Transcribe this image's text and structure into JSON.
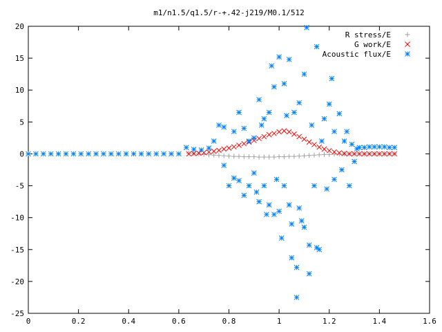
{
  "chart_data": {
    "type": "scatter",
    "title": "m1/n1.5/q1.5/r-+.42-j219/M0.1/512",
    "xlabel": "",
    "ylabel": "",
    "xlim": [
      0,
      1.6
    ],
    "ylim": [
      -25,
      20
    ],
    "x_ticks": [
      0,
      0.2,
      0.4,
      0.6,
      0.8,
      1,
      1.2,
      1.4,
      1.6
    ],
    "x_tick_labels": [
      "0",
      "0.2",
      "0.4",
      "0.6",
      "0.8",
      "1",
      "1.2",
      "1.4",
      "1.6"
    ],
    "y_ticks": [
      -25,
      -20,
      -15,
      -10,
      -5,
      0,
      5,
      10,
      15,
      20
    ],
    "y_tick_labels": [
      "-25",
      "-20",
      "-15",
      "-10",
      "-5",
      "0",
      "5",
      "10",
      "15",
      "20"
    ],
    "grid": false,
    "legend_position": "top-right",
    "series": [
      {
        "name": "R stress/E",
        "marker": "plus",
        "color": "#a0a0a0",
        "points": [
          [
            0.64,
            0.1
          ],
          [
            0.66,
            0.05
          ],
          [
            0.68,
            0.0
          ],
          [
            0.7,
            -0.1
          ],
          [
            0.72,
            -0.15
          ],
          [
            0.74,
            -0.2
          ],
          [
            0.76,
            -0.25
          ],
          [
            0.78,
            -0.3
          ],
          [
            0.8,
            -0.35
          ],
          [
            0.82,
            -0.4
          ],
          [
            0.84,
            -0.4
          ],
          [
            0.86,
            -0.45
          ],
          [
            0.88,
            -0.45
          ],
          [
            0.9,
            -0.45
          ],
          [
            0.92,
            -0.5
          ],
          [
            0.94,
            -0.5
          ],
          [
            0.96,
            -0.5
          ],
          [
            0.98,
            -0.5
          ],
          [
            1.0,
            -0.45
          ],
          [
            1.02,
            -0.45
          ],
          [
            1.04,
            -0.4
          ],
          [
            1.06,
            -0.4
          ],
          [
            1.08,
            -0.35
          ],
          [
            1.1,
            -0.3
          ],
          [
            1.12,
            -0.25
          ],
          [
            1.14,
            -0.2
          ],
          [
            1.16,
            -0.15
          ],
          [
            1.18,
            -0.1
          ],
          [
            1.2,
            -0.1
          ],
          [
            1.22,
            -0.05
          ],
          [
            1.24,
            -0.05
          ],
          [
            1.26,
            0.0
          ],
          [
            1.28,
            0.0
          ],
          [
            1.3,
            0.0
          ],
          [
            1.32,
            0.0
          ],
          [
            1.34,
            0.0
          ],
          [
            1.36,
            0.0
          ],
          [
            1.38,
            0.0
          ],
          [
            1.4,
            0.0
          ],
          [
            1.42,
            0.0
          ],
          [
            1.44,
            0.0
          ],
          [
            1.46,
            0.0
          ]
        ]
      },
      {
        "name": "G work/E",
        "marker": "cross",
        "color": "#ff0000",
        "points": [
          [
            0.64,
            0.0
          ],
          [
            0.66,
            0.05
          ],
          [
            0.68,
            0.1
          ],
          [
            0.7,
            0.2
          ],
          [
            0.72,
            0.3
          ],
          [
            0.74,
            0.4
          ],
          [
            0.76,
            0.55
          ],
          [
            0.78,
            0.75
          ],
          [
            0.8,
            0.9
          ],
          [
            0.82,
            1.1
          ],
          [
            0.84,
            1.35
          ],
          [
            0.86,
            1.6
          ],
          [
            0.88,
            1.85
          ],
          [
            0.9,
            2.1
          ],
          [
            0.92,
            2.4
          ],
          [
            0.94,
            2.7
          ],
          [
            0.96,
            3.0
          ],
          [
            0.98,
            3.2
          ],
          [
            1.0,
            3.45
          ],
          [
            1.02,
            3.6
          ],
          [
            1.04,
            3.45
          ],
          [
            1.06,
            3.1
          ],
          [
            1.08,
            2.7
          ],
          [
            1.1,
            2.3
          ],
          [
            1.12,
            1.85
          ],
          [
            1.14,
            1.45
          ],
          [
            1.16,
            1.05
          ],
          [
            1.18,
            0.75
          ],
          [
            1.2,
            0.5
          ],
          [
            1.22,
            0.3
          ],
          [
            1.24,
            0.15
          ],
          [
            1.26,
            0.05
          ],
          [
            1.28,
            0.0
          ],
          [
            1.3,
            0.0
          ],
          [
            1.32,
            0.0
          ],
          [
            1.34,
            0.0
          ],
          [
            1.36,
            0.0
          ],
          [
            1.38,
            0.0
          ],
          [
            1.4,
            0.0
          ],
          [
            1.42,
            0.0
          ],
          [
            1.44,
            0.0
          ],
          [
            1.46,
            0.0
          ]
        ]
      },
      {
        "name": "Acoustic flux/E",
        "marker": "star",
        "color": "#0080ff",
        "points": [
          [
            0.0,
            0.0
          ],
          [
            0.03,
            0.0
          ],
          [
            0.06,
            0.0
          ],
          [
            0.09,
            0.0
          ],
          [
            0.12,
            0.0
          ],
          [
            0.15,
            0.0
          ],
          [
            0.18,
            0.0
          ],
          [
            0.21,
            0.0
          ],
          [
            0.24,
            0.0
          ],
          [
            0.27,
            0.0
          ],
          [
            0.3,
            0.0
          ],
          [
            0.33,
            0.0
          ],
          [
            0.36,
            0.0
          ],
          [
            0.39,
            0.0
          ],
          [
            0.42,
            0.0
          ],
          [
            0.45,
            0.0
          ],
          [
            0.48,
            0.0
          ],
          [
            0.51,
            0.0
          ],
          [
            0.54,
            0.0
          ],
          [
            0.57,
            0.0
          ],
          [
            0.6,
            0.0
          ],
          [
            0.63,
            1.0
          ],
          [
            0.66,
            0.7
          ],
          [
            0.69,
            0.6
          ],
          [
            0.72,
            0.9
          ],
          [
            0.74,
            2.0
          ],
          [
            0.76,
            4.5
          ],
          [
            0.78,
            4.2
          ],
          [
            0.78,
            -1.8
          ],
          [
            0.8,
            -5.0
          ],
          [
            0.82,
            -3.8
          ],
          [
            0.82,
            3.5
          ],
          [
            0.84,
            -4.2
          ],
          [
            0.84,
            6.5
          ],
          [
            0.86,
            -6.5
          ],
          [
            0.86,
            4.0
          ],
          [
            0.88,
            -5.0
          ],
          [
            0.88,
            2.0
          ],
          [
            0.9,
            -3.0
          ],
          [
            0.9,
            2.5
          ],
          [
            0.91,
            -6.0
          ],
          [
            0.92,
            -7.5
          ],
          [
            0.92,
            8.5
          ],
          [
            0.93,
            4.5
          ],
          [
            0.94,
            -5.0
          ],
          [
            0.94,
            5.5
          ],
          [
            0.95,
            -9.5
          ],
          [
            0.96,
            -8.0
          ],
          [
            0.96,
            6.5
          ],
          [
            0.97,
            13.8
          ],
          [
            0.98,
            -9.5
          ],
          [
            0.98,
            10.5
          ],
          [
            0.99,
            -4.0
          ],
          [
            1.0,
            -9.0
          ],
          [
            1.0,
            15.2
          ],
          [
            1.01,
            -13.2
          ],
          [
            1.02,
            11.0
          ],
          [
            1.02,
            -5.0
          ],
          [
            1.03,
            6.0
          ],
          [
            1.04,
            -8.0
          ],
          [
            1.04,
            14.8
          ],
          [
            1.05,
            -16.3
          ],
          [
            1.05,
            -11.0
          ],
          [
            1.06,
            6.5
          ],
          [
            1.07,
            -17.8
          ],
          [
            1.07,
            -22.5
          ],
          [
            1.08,
            -8.5
          ],
          [
            1.08,
            8.0
          ],
          [
            1.09,
            -10.5
          ],
          [
            1.1,
            12.5
          ],
          [
            1.1,
            -11.5
          ],
          [
            1.11,
            19.8
          ],
          [
            1.12,
            -18.8
          ],
          [
            1.12,
            -14.3
          ],
          [
            1.13,
            4.5
          ],
          [
            1.14,
            -5.0
          ],
          [
            1.15,
            16.8
          ],
          [
            1.15,
            -14.7
          ],
          [
            1.16,
            -15.0
          ],
          [
            1.17,
            2.0
          ],
          [
            1.18,
            5.5
          ],
          [
            1.19,
            -5.5
          ],
          [
            1.2,
            7.8
          ],
          [
            1.21,
            11.8
          ],
          [
            1.22,
            -4.0
          ],
          [
            1.22,
            3.5
          ],
          [
            1.24,
            6.3
          ],
          [
            1.25,
            -2.5
          ],
          [
            1.26,
            2.0
          ],
          [
            1.27,
            3.5
          ],
          [
            1.28,
            -5.0
          ],
          [
            1.29,
            1.5
          ],
          [
            1.3,
            -1.2
          ],
          [
            1.31,
            0.8
          ],
          [
            1.32,
            1.0
          ],
          [
            1.34,
            1.0
          ],
          [
            1.36,
            1.1
          ],
          [
            1.38,
            1.1
          ],
          [
            1.4,
            1.1
          ],
          [
            1.42,
            1.1
          ],
          [
            1.44,
            1.0
          ],
          [
            1.46,
            1.0
          ]
        ]
      }
    ]
  }
}
